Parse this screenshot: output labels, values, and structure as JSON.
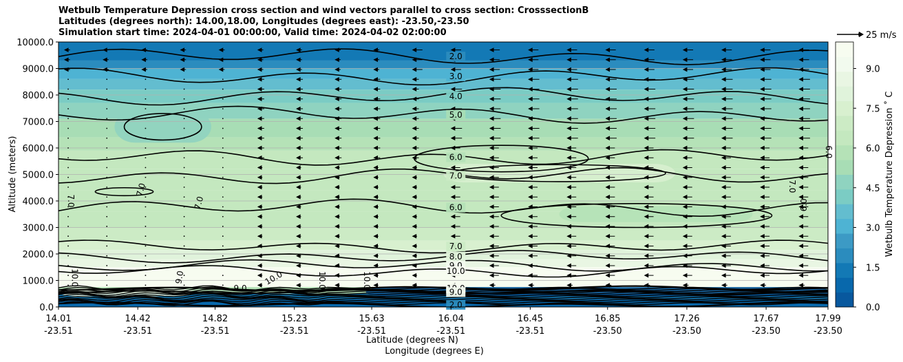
{
  "chart_data": {
    "type": "contour",
    "title": [
      "Wetbulb Temperature Depression cross section and wind vectors parallel to cross section: CrosssectionB",
      "Latitudes (degrees north): 14.00,18.00, Longitudes (degrees east): -23.50,-23.50",
      "Simulation start time: 2024-04-01 00:00:00, Valid time: 2024-04-02 02:00:00"
    ],
    "ylabel": "Altitude (meters)",
    "xlabel": "Latitude (degrees N)",
    "xlabel2": "Longitude (degrees E)",
    "ylim": [
      0,
      10000
    ],
    "xlim": [
      14.01,
      17.99
    ],
    "yticks": [
      {
        "v": 0,
        "label": "0.0"
      },
      {
        "v": 1000,
        "label": "1000.0"
      },
      {
        "v": 2000,
        "label": "2000.0"
      },
      {
        "v": 3000,
        "label": "3000.0"
      },
      {
        "v": 4000,
        "label": "4000.0"
      },
      {
        "v": 5000,
        "label": "5000.0"
      },
      {
        "v": 6000,
        "label": "6000.0"
      },
      {
        "v": 7000,
        "label": "7000.0"
      },
      {
        "v": 8000,
        "label": "8000.0"
      },
      {
        "v": 9000,
        "label": "9000.0"
      },
      {
        "v": 10000,
        "label": "10000.0"
      }
    ],
    "xticks": [
      {
        "v": 14.01,
        "lat": "14.01",
        "lon": "-23.51"
      },
      {
        "v": 14.42,
        "lat": "14.42",
        "lon": "-23.51"
      },
      {
        "v": 14.82,
        "lat": "14.82",
        "lon": "-23.51"
      },
      {
        "v": 15.23,
        "lat": "15.23",
        "lon": "-23.51"
      },
      {
        "v": 15.63,
        "lat": "15.63",
        "lon": "-23.51"
      },
      {
        "v": 16.04,
        "lat": "16.04",
        "lon": "-23.51"
      },
      {
        "v": 16.45,
        "lat": "16.45",
        "lon": "-23.51"
      },
      {
        "v": 16.85,
        "lat": "16.85",
        "lon": "-23.50"
      },
      {
        "v": 17.26,
        "lat": "17.26",
        "lon": "-23.50"
      },
      {
        "v": 17.67,
        "lat": "17.67",
        "lon": "-23.50"
      },
      {
        "v": 17.99,
        "lat": "17.99",
        "lon": "-23.50"
      }
    ],
    "colorbar": {
      "label": "Wetbulb Temperature Depression ˚ C",
      "range": [
        0,
        10
      ],
      "ticks": [
        {
          "v": 0,
          "label": "0.0"
        },
        {
          "v": 1.5,
          "label": "1.5"
        },
        {
          "v": 3,
          "label": "3.0"
        },
        {
          "v": 4.5,
          "label": "4.5"
        },
        {
          "v": 6,
          "label": "6.0"
        },
        {
          "v": 7.5,
          "label": "7.5"
        },
        {
          "v": 9,
          "label": "9.0"
        }
      ],
      "colors": [
        "#08589e",
        "#0868ac",
        "#1379b5",
        "#2b8cbe",
        "#3c9ac5",
        "#4eb3d3",
        "#63bdcf",
        "#7bccc4",
        "#8fd3c0",
        "#a8ddb5",
        "#b5e2b7",
        "#c4e8bf",
        "#ccebc5",
        "#d8f0cf",
        "#e0f3db",
        "#e9f6e3",
        "#f2faee",
        "#f7fcf0"
      ]
    },
    "wind_key": {
      "label": "25 m/s",
      "value": 25
    },
    "contour_levels": [
      {
        "v": 2.0,
        "label": "2.0",
        "alt": 9450
      },
      {
        "v": 3.0,
        "label": "3.0",
        "alt": 8700
      },
      {
        "v": 4.0,
        "label": "4.0",
        "alt": 7950
      },
      {
        "v": 5.0,
        "label": "5.0",
        "alt": 7250
      },
      {
        "v": 6.0,
        "label": "6.0",
        "alt": 5650
      },
      {
        "v": 7.0,
        "label": "7.0",
        "alt": 4950
      },
      {
        "v": 6.0,
        "label": "6.0",
        "alt": 3750
      },
      {
        "v": 7.0,
        "label": "7.0",
        "alt": 2280
      },
      {
        "v": 8.0,
        "label": "8.0",
        "alt": 1900
      },
      {
        "v": 9.0,
        "label": "9.0",
        "alt": 1560
      },
      {
        "v": 10.0,
        "label": "10.0",
        "alt": 1350
      },
      {
        "v": 10.0,
        "label": "10.0",
        "alt": 700
      },
      {
        "v": 9.0,
        "label": "9.0",
        "alt": 560
      },
      {
        "v": 2.0,
        "label": "2.0",
        "alt": 80
      }
    ],
    "contour_side_labels": [
      {
        "label": "7.0",
        "lat": 14.06,
        "alt": 4000,
        "rot": 90
      },
      {
        "label": "7.0",
        "lat": 14.45,
        "alt": 4400,
        "rot": -75
      },
      {
        "label": "7.0",
        "lat": 14.75,
        "alt": 3900,
        "rot": -75
      },
      {
        "label": "7.0",
        "lat": 17.79,
        "alt": 4550,
        "rot": 90
      },
      {
        "label": "6.0",
        "lat": 17.88,
        "alt": 3850,
        "rot": -90
      },
      {
        "label": "6.0",
        "lat": 17.98,
        "alt": 5850,
        "rot": 90
      },
      {
        "label": "10.0",
        "lat": 14.08,
        "alt": 1100,
        "rot": 90
      },
      {
        "label": "9.0",
        "lat": 14.65,
        "alt": 1100,
        "rot": -80
      },
      {
        "label": "10.0",
        "lat": 15.13,
        "alt": 1000,
        "rot": -30
      },
      {
        "label": "10.0",
        "lat": 15.36,
        "alt": 1000,
        "rot": 90
      },
      {
        "label": "10.0",
        "lat": 15.59,
        "alt": 1000,
        "rot": 90
      },
      {
        "label": "9.0",
        "lat": 14.95,
        "alt": 600,
        "rot": 0
      }
    ],
    "wind_vectors": {
      "direction": "toward lower latitude",
      "max_speed_ms": 12
    }
  }
}
